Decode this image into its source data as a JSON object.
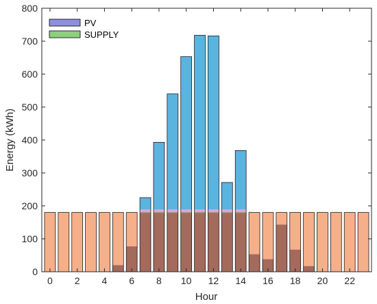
{
  "chart_data": {
    "type": "bar",
    "title": "",
    "xlabel": "Hour",
    "ylabel": "Energy (kWh)",
    "x": [
      0,
      1,
      2,
      3,
      4,
      5,
      6,
      7,
      8,
      9,
      10,
      11,
      12,
      13,
      14,
      15,
      16,
      17,
      18,
      19,
      20,
      21,
      22,
      23
    ],
    "xticks": [
      "0",
      "2",
      "4",
      "6",
      "8",
      "10",
      "12",
      "14",
      "16",
      "18",
      "20",
      "22"
    ],
    "xtick_values": [
      0,
      2,
      4,
      6,
      8,
      10,
      12,
      14,
      16,
      18,
      20,
      22
    ],
    "yticks": [
      "0",
      "100",
      "200",
      "300",
      "400",
      "500",
      "600",
      "700",
      "800"
    ],
    "ytick_values": [
      0,
      100,
      200,
      300,
      400,
      500,
      600,
      700,
      800
    ],
    "xlim": [
      -0.6,
      23.6
    ],
    "ylim": [
      0,
      800
    ],
    "grid": false,
    "legend_position": "top-left",
    "series": [
      {
        "name": "PV",
        "color": "#5ab4e0",
        "legend_color": "#8f8fe0",
        "values": [
          0,
          0,
          0,
          0,
          0,
          20,
          77,
          225,
          393,
          540,
          653,
          718,
          716,
          271,
          368,
          53,
          38,
          143,
          67,
          17,
          0,
          0,
          0,
          0
        ]
      },
      {
        "name": "SUPPLY",
        "color": "#f5b08a",
        "legend_color": "#8ccf7e",
        "values": [
          180,
          180,
          180,
          180,
          180,
          180,
          180,
          180,
          180,
          180,
          180,
          180,
          180,
          180,
          180,
          180,
          180,
          180,
          180,
          180,
          180,
          180,
          180,
          180
        ]
      }
    ],
    "overlap_color": "#a46a5c",
    "overlap_band_color": "#e9a6cf"
  }
}
